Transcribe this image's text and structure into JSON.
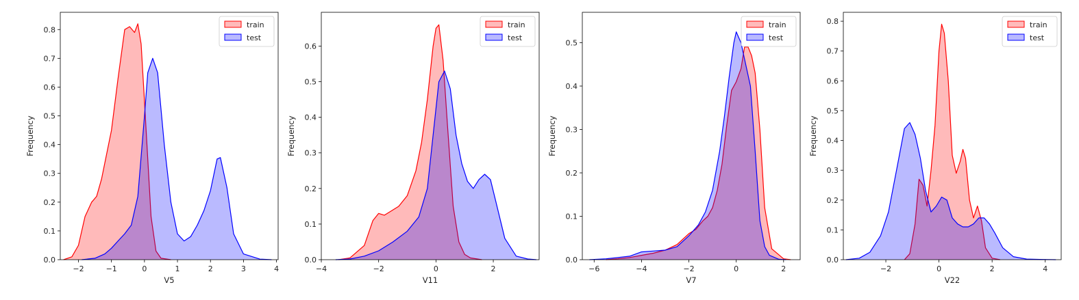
{
  "chart_data": [
    {
      "type": "area",
      "xlabel": "V5",
      "ylabel": "Frequency",
      "xlim": [
        -2.55,
        4.05
      ],
      "ylim": [
        0,
        0.86
      ],
      "xticks": [
        -2,
        -1,
        0,
        1,
        2,
        3,
        4
      ],
      "yticks": [
        0.0,
        0.1,
        0.2,
        0.3,
        0.4,
        0.5,
        0.6,
        0.7,
        0.8
      ],
      "legend_position": "top-right",
      "series": [
        {
          "name": "train",
          "color": "#ff0000",
          "x": [
            -2.45,
            -2.2,
            -2.0,
            -1.8,
            -1.6,
            -1.45,
            -1.3,
            -1.0,
            -0.8,
            -0.6,
            -0.45,
            -0.3,
            -0.2,
            -0.1,
            0.0,
            0.1,
            0.2,
            0.35,
            0.5,
            0.8
          ],
          "y": [
            0,
            0.01,
            0.05,
            0.15,
            0.2,
            0.22,
            0.28,
            0.45,
            0.63,
            0.8,
            0.81,
            0.79,
            0.82,
            0.75,
            0.55,
            0.35,
            0.15,
            0.03,
            0.005,
            0
          ]
        },
        {
          "name": "test",
          "color": "#0000ff",
          "x": [
            -1.9,
            -1.5,
            -1.2,
            -1.0,
            -0.8,
            -0.6,
            -0.4,
            -0.2,
            0.0,
            0.1,
            0.25,
            0.4,
            0.6,
            0.8,
            1.0,
            1.2,
            1.4,
            1.6,
            1.8,
            2.0,
            2.2,
            2.3,
            2.5,
            2.7,
            3.0,
            3.5,
            3.85
          ],
          "y": [
            0,
            0.005,
            0.02,
            0.04,
            0.065,
            0.09,
            0.12,
            0.22,
            0.5,
            0.65,
            0.7,
            0.65,
            0.4,
            0.2,
            0.09,
            0.065,
            0.08,
            0.12,
            0.17,
            0.24,
            0.35,
            0.355,
            0.25,
            0.09,
            0.02,
            0.002,
            0
          ]
        }
      ],
      "legend": [
        "train",
        "test"
      ]
    },
    {
      "type": "area",
      "xlabel": "V11",
      "ylabel": "Frequency",
      "xlim": [
        -4.0,
        3.6
      ],
      "ylim": [
        0,
        0.695
      ],
      "xticks": [
        -4,
        -2,
        0,
        2
      ],
      "yticks": [
        0.0,
        0.1,
        0.2,
        0.3,
        0.4,
        0.5,
        0.6
      ],
      "legend_position": "top-right",
      "series": [
        {
          "name": "train",
          "color": "#ff0000",
          "x": [
            -3.4,
            -3.0,
            -2.5,
            -2.2,
            -2.0,
            -1.8,
            -1.6,
            -1.3,
            -1.0,
            -0.7,
            -0.5,
            -0.3,
            -0.1,
            0.0,
            0.1,
            0.25,
            0.4,
            0.6,
            0.8,
            1.0,
            1.2,
            1.6
          ],
          "y": [
            0,
            0.005,
            0.04,
            0.11,
            0.13,
            0.125,
            0.135,
            0.15,
            0.18,
            0.25,
            0.33,
            0.45,
            0.6,
            0.65,
            0.66,
            0.56,
            0.38,
            0.15,
            0.05,
            0.015,
            0.005,
            0
          ]
        },
        {
          "name": "test",
          "color": "#0000ff",
          "x": [
            -3.5,
            -3.0,
            -2.5,
            -2.0,
            -1.5,
            -1.0,
            -0.6,
            -0.3,
            -0.1,
            0.1,
            0.3,
            0.5,
            0.7,
            0.9,
            1.1,
            1.3,
            1.5,
            1.7,
            1.9,
            2.1,
            2.4,
            2.8,
            3.2,
            3.5
          ],
          "y": [
            0,
            0.002,
            0.01,
            0.025,
            0.05,
            0.08,
            0.12,
            0.2,
            0.35,
            0.5,
            0.53,
            0.48,
            0.35,
            0.27,
            0.22,
            0.2,
            0.225,
            0.24,
            0.225,
            0.16,
            0.06,
            0.01,
            0.002,
            0
          ]
        }
      ],
      "legend": [
        "train",
        "test"
      ]
    },
    {
      "type": "area",
      "xlabel": "V7",
      "ylabel": "Frequency",
      "xlim": [
        -6.5,
        2.7
      ],
      "ylim": [
        0,
        0.57
      ],
      "xticks": [
        -6,
        -4,
        -2,
        0,
        2
      ],
      "yticks": [
        0.0,
        0.1,
        0.2,
        0.3,
        0.4,
        0.5
      ],
      "legend_position": "top-right",
      "series": [
        {
          "name": "train",
          "color": "#ff0000",
          "x": [
            -5.5,
            -5.0,
            -4.5,
            -4.0,
            -3.5,
            -3.0,
            -2.5,
            -2.0,
            -1.7,
            -1.4,
            -1.2,
            -1.0,
            -0.8,
            -0.6,
            -0.4,
            -0.2,
            0.0,
            0.2,
            0.35,
            0.5,
            0.65,
            0.8,
            1.0,
            1.2,
            1.5,
            2.0,
            2.3
          ],
          "y": [
            0,
            0.002,
            0.005,
            0.01,
            0.015,
            0.022,
            0.035,
            0.06,
            0.07,
            0.09,
            0.1,
            0.12,
            0.16,
            0.22,
            0.31,
            0.39,
            0.41,
            0.44,
            0.49,
            0.49,
            0.47,
            0.43,
            0.3,
            0.12,
            0.025,
            0.002,
            0
          ]
        },
        {
          "name": "test",
          "color": "#0000ff",
          "x": [
            -6.2,
            -5.5,
            -5.0,
            -4.5,
            -4.0,
            -3.5,
            -3.0,
            -2.5,
            -2.0,
            -1.6,
            -1.3,
            -1.0,
            -0.7,
            -0.5,
            -0.3,
            -0.1,
            0.0,
            0.2,
            0.4,
            0.6,
            0.8,
            1.0,
            1.2,
            1.4,
            1.8,
            2.1
          ],
          "y": [
            0,
            0.002,
            0.005,
            0.008,
            0.018,
            0.02,
            0.022,
            0.03,
            0.055,
            0.08,
            0.11,
            0.16,
            0.25,
            0.33,
            0.42,
            0.5,
            0.525,
            0.5,
            0.45,
            0.4,
            0.25,
            0.09,
            0.03,
            0.01,
            0.001,
            0
          ]
        }
      ],
      "legend": [
        "train",
        "test"
      ]
    },
    {
      "type": "area",
      "xlabel": "V22",
      "ylabel": "Frequency",
      "xlim": [
        -3.6,
        4.6
      ],
      "ylim": [
        0,
        0.83
      ],
      "xticks": [
        -2,
        0,
        2,
        4
      ],
      "yticks": [
        0.0,
        0.1,
        0.2,
        0.3,
        0.4,
        0.5,
        0.6,
        0.7,
        0.8
      ],
      "legend_position": "top-right",
      "series": [
        {
          "name": "train",
          "color": "#ff0000",
          "x": [
            -1.3,
            -1.1,
            -0.9,
            -0.75,
            -0.6,
            -0.45,
            -0.3,
            -0.15,
            0.0,
            0.1,
            0.2,
            0.35,
            0.5,
            0.65,
            0.8,
            0.9,
            1.0,
            1.15,
            1.3,
            1.45,
            1.6,
            1.75,
            2.0,
            2.3
          ],
          "y": [
            0,
            0.02,
            0.12,
            0.27,
            0.25,
            0.18,
            0.3,
            0.45,
            0.7,
            0.79,
            0.76,
            0.6,
            0.35,
            0.29,
            0.33,
            0.37,
            0.34,
            0.2,
            0.14,
            0.18,
            0.13,
            0.04,
            0.005,
            0
          ]
        },
        {
          "name": "test",
          "color": "#0000ff",
          "x": [
            -3.5,
            -3.0,
            -2.6,
            -2.2,
            -1.9,
            -1.6,
            -1.3,
            -1.1,
            -0.9,
            -0.7,
            -0.5,
            -0.3,
            -0.1,
            0.1,
            0.3,
            0.5,
            0.7,
            0.9,
            1.1,
            1.3,
            1.5,
            1.7,
            1.9,
            2.1,
            2.4,
            2.8,
            3.3,
            3.8,
            4.4
          ],
          "y": [
            0,
            0.005,
            0.025,
            0.08,
            0.16,
            0.3,
            0.44,
            0.46,
            0.42,
            0.34,
            0.23,
            0.16,
            0.18,
            0.21,
            0.2,
            0.14,
            0.12,
            0.11,
            0.11,
            0.12,
            0.14,
            0.14,
            0.12,
            0.09,
            0.04,
            0.01,
            0.002,
            0.001,
            0
          ]
        }
      ],
      "legend": [
        "train",
        "test"
      ]
    }
  ]
}
